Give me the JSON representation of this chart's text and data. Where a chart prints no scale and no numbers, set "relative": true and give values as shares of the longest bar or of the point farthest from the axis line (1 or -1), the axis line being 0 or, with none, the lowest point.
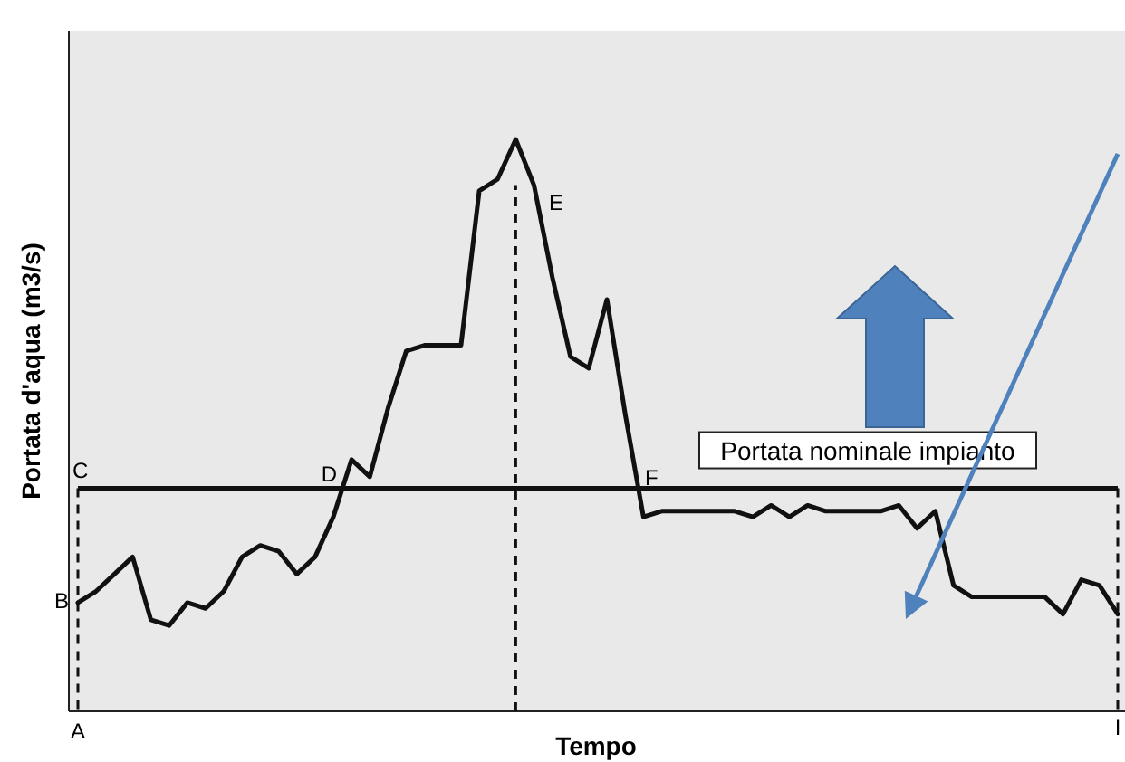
{
  "chart_data": {
    "type": "line",
    "relative": true,
    "xlabel": "Tempo",
    "ylabel": "Portata d'aqua (m3/s)",
    "line_style": "solid",
    "categories": [
      null,
      null,
      null,
      null,
      null,
      null,
      null,
      null,
      null,
      null,
      null,
      null,
      null,
      null,
      null,
      null,
      null,
      null,
      null,
      null,
      null,
      null,
      null,
      null,
      null,
      null,
      null,
      null,
      null,
      null,
      null,
      null,
      null,
      null,
      null,
      null,
      null,
      null,
      null,
      null,
      null,
      null,
      null,
      null,
      null,
      null,
      null,
      null,
      null,
      null,
      null,
      null,
      null,
      null,
      null,
      null,
      null,
      null
    ],
    "series": [
      {
        "color": "#111111",
        "values": [
          0.19,
          0.21,
          0.24,
          0.27,
          0.16,
          0.15,
          0.19,
          0.18,
          0.21,
          0.27,
          0.29,
          0.28,
          0.24,
          0.27,
          0.34,
          0.44,
          0.41,
          0.53,
          0.63,
          0.64,
          0.64,
          0.64,
          0.91,
          0.93,
          1,
          0.92,
          0.76,
          0.62,
          0.6,
          0.72,
          0.52,
          0.34,
          0.35,
          0.35,
          0.35,
          0.35,
          0.35,
          0.34,
          0.36,
          0.34,
          0.36,
          0.35,
          0.35,
          0.35,
          0.35,
          0.36,
          0.32,
          0.35,
          0.22,
          0.2,
          0.2,
          0.2,
          0.2,
          0.2,
          0.17,
          0.23,
          0.22,
          0.17
        ]
      }
    ],
    "ref_lines": [
      {
        "axis": "y",
        "value": 0.39,
        "label": "Portata nominale impianto",
        "color": "#111111",
        "line_style": "solid"
      }
    ],
    "annotations": [
      "A",
      "B",
      "C",
      "D",
      "E",
      "F",
      "I"
    ]
  }
}
